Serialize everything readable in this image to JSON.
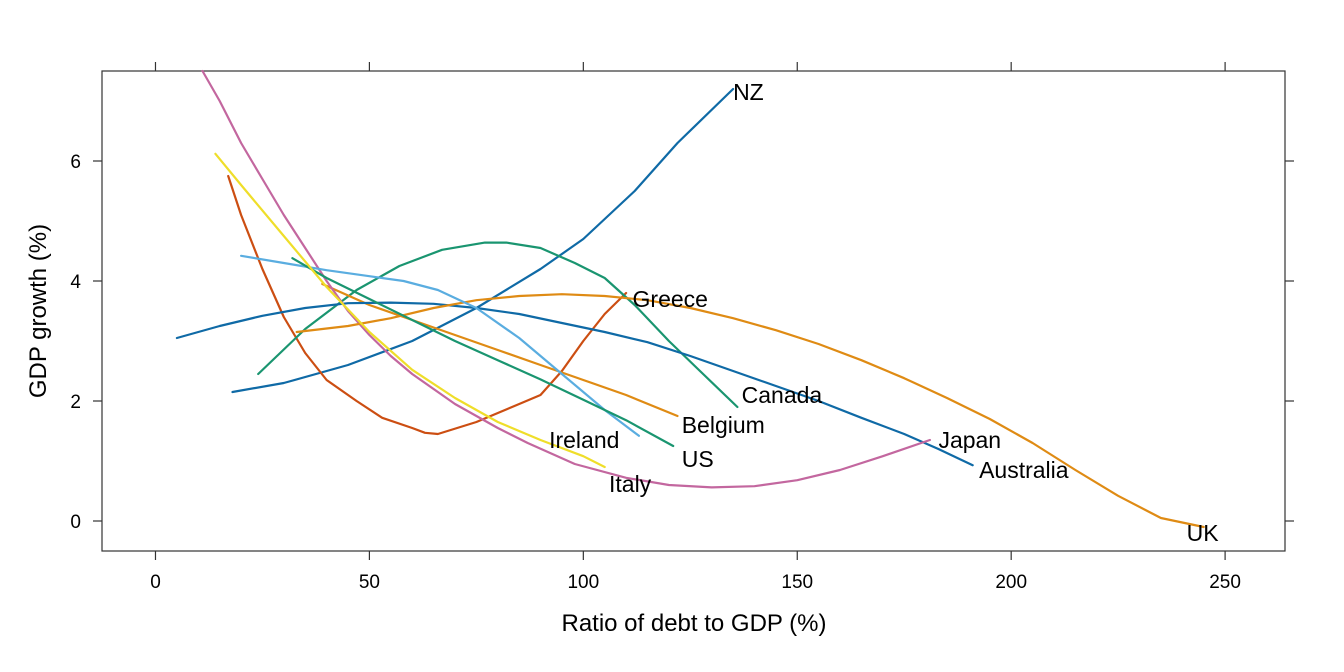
{
  "chart_data": {
    "type": "line",
    "xlabel": "Ratio of debt to GDP (%)",
    "ylabel": "GDP growth (%)",
    "xlim": [
      -12.5,
      264
    ],
    "ylim": [
      -0.5,
      7.5
    ],
    "x_ticks": [
      0,
      50,
      100,
      150,
      200,
      250
    ],
    "y_ticks": [
      0,
      2,
      4,
      6
    ],
    "grid": false,
    "series": [
      {
        "name": "NZ",
        "color": "#0f6aa6",
        "points": [
          [
            18,
            2.15
          ],
          [
            30,
            2.3
          ],
          [
            45,
            2.6
          ],
          [
            60,
            3.0
          ],
          [
            75,
            3.55
          ],
          [
            90,
            4.2
          ],
          [
            100,
            4.7
          ],
          [
            112,
            5.5
          ],
          [
            122,
            6.3
          ],
          [
            135,
            7.2
          ]
        ]
      },
      {
        "name": "Greece",
        "color": "#cc4e12",
        "points": [
          [
            17,
            5.75
          ],
          [
            20,
            5.1
          ],
          [
            25,
            4.2
          ],
          [
            30,
            3.4
          ],
          [
            35,
            2.8
          ],
          [
            40,
            2.35
          ],
          [
            47,
            2.0
          ],
          [
            53,
            1.72
          ],
          [
            60,
            1.55
          ],
          [
            63,
            1.47
          ],
          [
            66,
            1.45
          ],
          [
            75,
            1.65
          ],
          [
            85,
            1.95
          ],
          [
            90,
            2.1
          ],
          [
            95,
            2.5
          ],
          [
            100,
            3.0
          ],
          [
            105,
            3.45
          ],
          [
            110,
            3.8
          ]
        ]
      },
      {
        "name": "Canada",
        "color": "#1a9570",
        "points": [
          [
            24,
            2.45
          ],
          [
            35,
            3.2
          ],
          [
            47,
            3.85
          ],
          [
            57,
            4.25
          ],
          [
            67,
            4.52
          ],
          [
            77,
            4.64
          ],
          [
            82,
            4.64
          ],
          [
            90,
            4.55
          ],
          [
            98,
            4.3
          ],
          [
            105,
            4.05
          ],
          [
            112,
            3.6
          ],
          [
            120,
            3.0
          ],
          [
            128,
            2.45
          ],
          [
            136,
            1.9
          ]
        ]
      },
      {
        "name": "Belgium",
        "color": "#df8b14",
        "points": [
          [
            39,
            3.95
          ],
          [
            50,
            3.6
          ],
          [
            60,
            3.35
          ],
          [
            70,
            3.1
          ],
          [
            80,
            2.85
          ],
          [
            90,
            2.6
          ],
          [
            100,
            2.35
          ],
          [
            110,
            2.1
          ],
          [
            122,
            1.75
          ]
        ]
      },
      {
        "name": "Australia",
        "color": "#0f6aa6",
        "points": [
          [
            5,
            3.05
          ],
          [
            15,
            3.25
          ],
          [
            25,
            3.42
          ],
          [
            35,
            3.55
          ],
          [
            45,
            3.63
          ],
          [
            55,
            3.64
          ],
          [
            65,
            3.62
          ],
          [
            75,
            3.55
          ],
          [
            85,
            3.45
          ],
          [
            95,
            3.3
          ],
          [
            105,
            3.15
          ],
          [
            115,
            2.98
          ],
          [
            125,
            2.75
          ],
          [
            135,
            2.5
          ],
          [
            145,
            2.25
          ],
          [
            155,
            2.0
          ],
          [
            165,
            1.72
          ],
          [
            175,
            1.45
          ],
          [
            183,
            1.2
          ],
          [
            191,
            0.93
          ]
        ]
      },
      {
        "name": "Japan",
        "color": "#c3679f",
        "points": [
          [
            11,
            7.5
          ],
          [
            15,
            7.0
          ],
          [
            20,
            6.3
          ],
          [
            25,
            5.7
          ],
          [
            30,
            5.1
          ],
          [
            35,
            4.55
          ],
          [
            40,
            4.0
          ],
          [
            45,
            3.5
          ],
          [
            50,
            3.1
          ],
          [
            55,
            2.75
          ],
          [
            60,
            2.45
          ],
          [
            70,
            1.95
          ],
          [
            80,
            1.55
          ],
          [
            87,
            1.3
          ],
          [
            98,
            0.95
          ],
          [
            110,
            0.72
          ],
          [
            120,
            0.6
          ],
          [
            130,
            0.56
          ],
          [
            140,
            0.58
          ],
          [
            150,
            0.68
          ],
          [
            160,
            0.85
          ],
          [
            170,
            1.08
          ],
          [
            181,
            1.35
          ]
        ]
      },
      {
        "name": "UK",
        "color": "#df8b14",
        "points": [
          [
            33,
            3.15
          ],
          [
            45,
            3.25
          ],
          [
            55,
            3.38
          ],
          [
            65,
            3.55
          ],
          [
            75,
            3.68
          ],
          [
            85,
            3.75
          ],
          [
            95,
            3.78
          ],
          [
            105,
            3.75
          ],
          [
            115,
            3.68
          ],
          [
            125,
            3.55
          ],
          [
            135,
            3.38
          ],
          [
            145,
            3.18
          ],
          [
            155,
            2.95
          ],
          [
            165,
            2.68
          ],
          [
            175,
            2.38
          ],
          [
            185,
            2.05
          ],
          [
            195,
            1.7
          ],
          [
            205,
            1.3
          ],
          [
            215,
            0.85
          ],
          [
            225,
            0.42
          ],
          [
            235,
            0.05
          ],
          [
            245,
            -0.1
          ]
        ]
      },
      {
        "name": "Ireland",
        "color": "#5aade0",
        "points": [
          [
            20,
            4.42
          ],
          [
            30,
            4.3
          ],
          [
            40,
            4.18
          ],
          [
            50,
            4.08
          ],
          [
            58,
            4.0
          ],
          [
            66,
            3.85
          ],
          [
            75,
            3.55
          ],
          [
            85,
            3.05
          ],
          [
            95,
            2.45
          ],
          [
            105,
            1.85
          ],
          [
            113,
            1.42
          ]
        ]
      },
      {
        "name": "US",
        "color": "#1a9570",
        "points": [
          [
            32,
            4.38
          ],
          [
            40,
            4.05
          ],
          [
            50,
            3.7
          ],
          [
            60,
            3.35
          ],
          [
            70,
            3.0
          ],
          [
            80,
            2.68
          ],
          [
            90,
            2.36
          ],
          [
            100,
            2.02
          ],
          [
            110,
            1.68
          ],
          [
            121,
            1.25
          ]
        ]
      },
      {
        "name": "Italy",
        "color": "#efde2a",
        "points": [
          [
            14,
            6.12
          ],
          [
            20,
            5.6
          ],
          [
            30,
            4.75
          ],
          [
            40,
            3.9
          ],
          [
            50,
            3.15
          ],
          [
            60,
            2.52
          ],
          [
            70,
            2.05
          ],
          [
            80,
            1.65
          ],
          [
            90,
            1.35
          ],
          [
            100,
            1.08
          ],
          [
            105,
            0.9
          ]
        ]
      }
    ],
    "labels": [
      {
        "text": "NZ",
        "x": 135,
        "y": 7.15
      },
      {
        "text": "Greece",
        "x": 111.5,
        "y": 3.7
      },
      {
        "text": "Canada",
        "x": 137,
        "y": 2.1
      },
      {
        "text": "Belgium",
        "x": 123,
        "y": 1.6
      },
      {
        "text": "Japan",
        "x": 183,
        "y": 1.35
      },
      {
        "text": "Australia",
        "x": 192.5,
        "y": 0.85
      },
      {
        "text": "UK",
        "x": 241,
        "y": -0.2
      },
      {
        "text": "Ireland",
        "x": 92,
        "y": 1.35
      },
      {
        "text": "US",
        "x": 123,
        "y": 1.03
      },
      {
        "text": "Italy",
        "x": 106,
        "y": 0.62
      }
    ]
  }
}
